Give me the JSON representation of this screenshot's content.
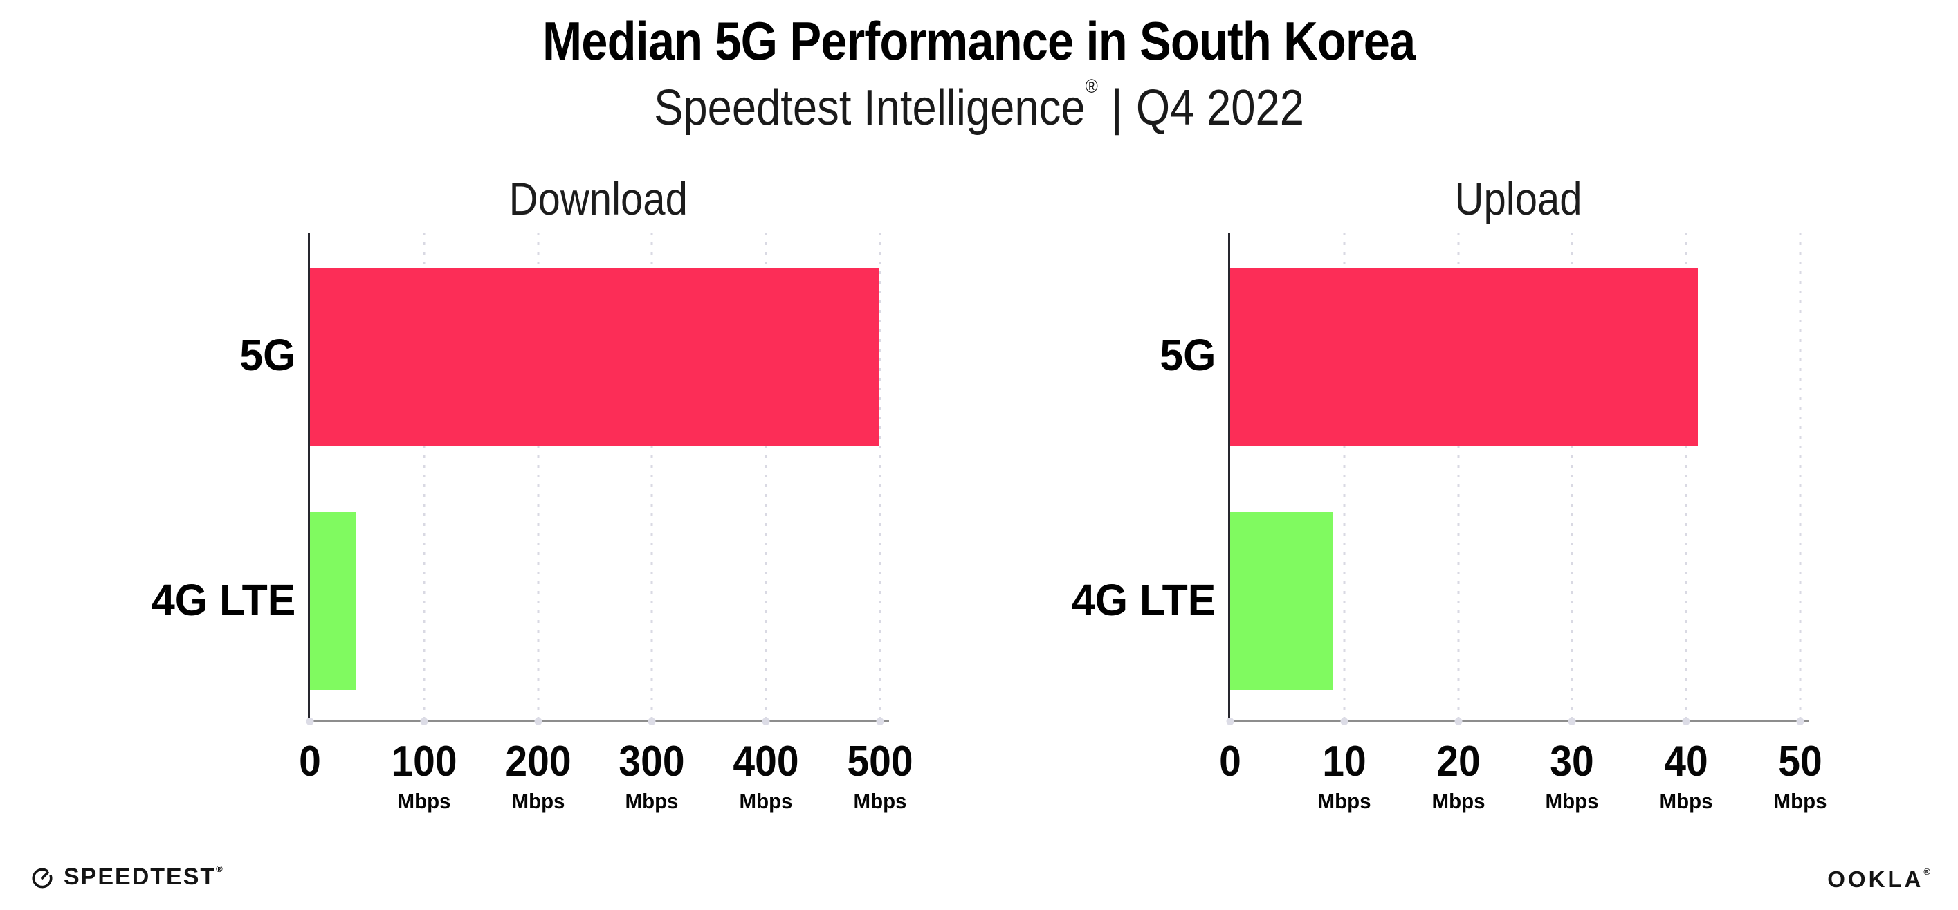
{
  "header": {
    "title": "Median 5G Performance in South Korea",
    "subtitle_brand": "Speedtest Intelligence",
    "subtitle_reg": "®",
    "subtitle_sep": "|",
    "subtitle_period": "Q4 2022"
  },
  "chart_data": [
    {
      "type": "bar",
      "orientation": "horizontal",
      "title": "Download",
      "categories": [
        "5G",
        "4G LTE"
      ],
      "values": [
        499,
        40
      ],
      "unit": "Mbps",
      "xlim": [
        0,
        508
      ],
      "grid": "dotted-vertical",
      "legend": "none",
      "bar_colors": [
        "#fc2d57",
        "#80fa60"
      ],
      "ticks": [
        {
          "value": 0,
          "label": "0",
          "unit": ""
        },
        {
          "value": 100,
          "label": "100",
          "unit": "Mbps"
        },
        {
          "value": 200,
          "label": "200",
          "unit": "Mbps"
        },
        {
          "value": 300,
          "label": "300",
          "unit": "Mbps"
        },
        {
          "value": 400,
          "label": "400",
          "unit": "Mbps"
        },
        {
          "value": 500,
          "label": "500",
          "unit": "Mbps"
        }
      ]
    },
    {
      "type": "bar",
      "orientation": "horizontal",
      "title": "Upload",
      "categories": [
        "5G",
        "4G LTE"
      ],
      "values": [
        41,
        9
      ],
      "unit": "Mbps",
      "xlim": [
        0,
        50.8
      ],
      "grid": "dotted-vertical",
      "legend": "none",
      "bar_colors": [
        "#fc2d57",
        "#80fa60"
      ],
      "ticks": [
        {
          "value": 0,
          "label": "0",
          "unit": ""
        },
        {
          "value": 10,
          "label": "10",
          "unit": "Mbps"
        },
        {
          "value": 20,
          "label": "20",
          "unit": "Mbps"
        },
        {
          "value": 30,
          "label": "30",
          "unit": "Mbps"
        },
        {
          "value": 40,
          "label": "40",
          "unit": "Mbps"
        },
        {
          "value": 50,
          "label": "50",
          "unit": "Mbps"
        }
      ]
    }
  ],
  "colors": {
    "bar_5g": "#fc2d57",
    "bar_4g_lte": "#80fa60",
    "gridline": "#d9d9e3",
    "y_axis": "#26262e",
    "x_axis": "#8d8d8d",
    "background": "#ffffff"
  },
  "footer": {
    "speedtest": {
      "icon": "gauge-icon",
      "label": "SPEEDTEST",
      "reg": "®"
    },
    "ookla": {
      "label": "OOKLA",
      "reg": "®"
    }
  }
}
